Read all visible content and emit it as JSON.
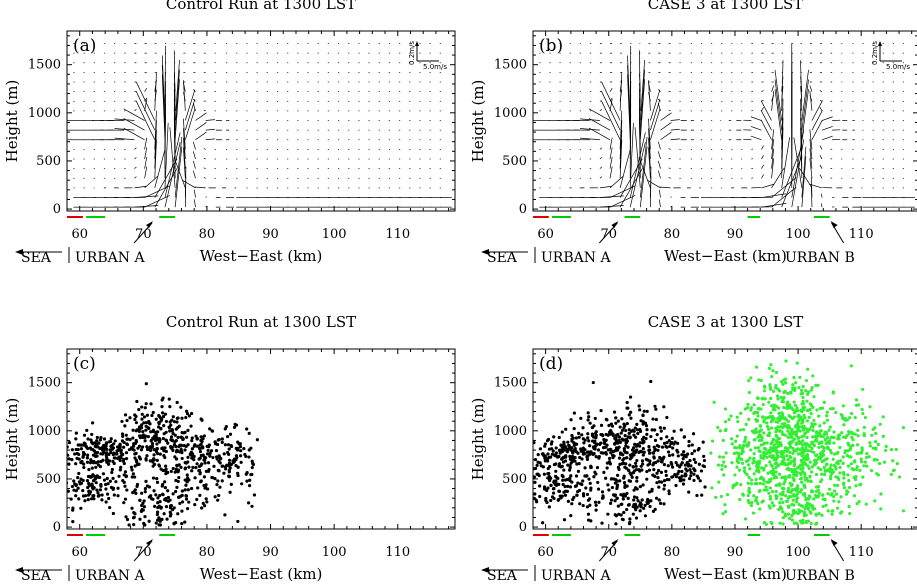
{
  "chart_data": [
    {
      "id": "a",
      "type": "vector",
      "title": "Control Run at 1300 LST",
      "panel_label": "(a)",
      "xlabel": "West−East (km)",
      "ylabel": "Height (m)",
      "xlim": [
        58,
        119
      ],
      "ylim": [
        -20,
        1850
      ],
      "xticks": [
        60,
        70,
        80,
        90,
        100,
        110
      ],
      "yticks": [
        0,
        500,
        1000,
        1500
      ],
      "legend_key": {
        "vertical": "0.2m/s",
        "horizontal": "5.0m/s",
        "placement": "top-right"
      },
      "updraft_km": [
        73,
        75
      ],
      "annotations": {
        "sea": "SEA",
        "urban_a": "URBAN A",
        "urban_b": ""
      },
      "surface_segments": [
        {
          "color": "#dd0000",
          "x": [
            58,
            60.5
          ]
        },
        {
          "color": "#00cc00",
          "x": [
            61,
            64
          ]
        },
        {
          "color": "#00cc00",
          "x": [
            72.5,
            75
          ]
        }
      ]
    },
    {
      "id": "b",
      "type": "vector",
      "title": "CASE 3 at 1300 LST",
      "panel_label": "(b)",
      "xlabel": "West−East (km)",
      "ylabel": "Height (m)",
      "xlim": [
        58,
        119
      ],
      "ylim": [
        -20,
        1850
      ],
      "xticks": [
        60,
        70,
        80,
        90,
        100,
        110
      ],
      "yticks": [
        0,
        500,
        1000,
        1500
      ],
      "legend_key": {
        "vertical": "0.2m/s",
        "horizontal": "5.0m/s",
        "placement": "top-right"
      },
      "updraft_km": [
        73,
        75,
        98,
        100
      ],
      "annotations": {
        "sea": "SEA",
        "urban_a": "URBAN A",
        "urban_b": "URBAN B"
      },
      "surface_segments": [
        {
          "color": "#dd0000",
          "x": [
            58,
            60.5
          ]
        },
        {
          "color": "#00cc00",
          "x": [
            61,
            64
          ]
        },
        {
          "color": "#00cc00",
          "x": [
            72.5,
            75
          ]
        },
        {
          "color": "#00cc00",
          "x": [
            92,
            94
          ]
        },
        {
          "color": "#00cc00",
          "x": [
            102.5,
            105
          ]
        }
      ]
    },
    {
      "id": "c",
      "type": "scatter",
      "title": "Control Run at 1300 LST",
      "panel_label": "(c)",
      "xlabel": "West−East (km)",
      "ylabel": "Height (m)",
      "xlim": [
        58,
        119
      ],
      "ylim": [
        -20,
        1850
      ],
      "xticks": [
        60,
        70,
        80,
        90,
        100,
        110
      ],
      "yticks": [
        0,
        500,
        1000,
        1500
      ],
      "annotations": {
        "sea": "SEA",
        "urban_a": "URBAN A",
        "urban_b": ""
      },
      "surface_segments": [
        {
          "color": "#dd0000",
          "x": [
            58,
            60.5
          ]
        },
        {
          "color": "#00cc00",
          "x": [
            61,
            64
          ]
        },
        {
          "color": "#00cc00",
          "x": [
            72.5,
            75
          ]
        }
      ],
      "series": [
        {
          "color": "#000000",
          "clouds": [
            {
              "cx": 63,
              "cy": 780,
              "sx": 3,
              "sy": 90,
              "n": 160
            },
            {
              "cx": 62,
              "cy": 430,
              "sx": 3,
              "sy": 110,
              "n": 120
            },
            {
              "cx": 72,
              "cy": 900,
              "sx": 3.5,
              "sy": 180,
              "n": 260
            },
            {
              "cx": 72,
              "cy": 250,
              "sx": 3,
              "sy": 150,
              "n": 110
            },
            {
              "cx": 80,
              "cy": 650,
              "sx": 3.5,
              "sy": 200,
              "n": 200
            },
            {
              "cx": 85,
              "cy": 700,
              "sx": 2,
              "sy": 120,
              "n": 40
            }
          ],
          "xmax": 88
        }
      ]
    },
    {
      "id": "d",
      "type": "scatter",
      "title": "CASE 3 at 1300 LST",
      "panel_label": "(d)",
      "xlabel": "West−East (km)",
      "ylabel": "Height (m)",
      "xlim": [
        58,
        119
      ],
      "ylim": [
        -20,
        1850
      ],
      "xticks": [
        60,
        70,
        80,
        90,
        100,
        110
      ],
      "yticks": [
        0,
        500,
        1000,
        1500
      ],
      "annotations": {
        "sea": "SEA",
        "urban_a": "URBAN A",
        "urban_b": "URBAN B"
      },
      "surface_segments": [
        {
          "color": "#dd0000",
          "x": [
            58,
            60.5
          ]
        },
        {
          "color": "#00cc00",
          "x": [
            61,
            64
          ]
        },
        {
          "color": "#00cc00",
          "x": [
            72.5,
            75
          ]
        },
        {
          "color": "#00cc00",
          "x": [
            92,
            94
          ]
        },
        {
          "color": "#00cc00",
          "x": [
            102.5,
            105
          ]
        }
      ],
      "series": [
        {
          "color": "#000000",
          "clouds": [
            {
              "cx": 63,
              "cy": 780,
              "sx": 3,
              "sy": 90,
              "n": 160
            },
            {
              "cx": 62,
              "cy": 430,
              "sx": 3,
              "sy": 110,
              "n": 120
            },
            {
              "cx": 72,
              "cy": 900,
              "sx": 3.5,
              "sy": 180,
              "n": 260
            },
            {
              "cx": 72,
              "cy": 250,
              "sx": 3,
              "sy": 150,
              "n": 110
            },
            {
              "cx": 80,
              "cy": 650,
              "sx": 3.5,
              "sy": 170,
              "n": 180
            }
          ],
          "xmax": 86
        },
        {
          "color": "#33ee33",
          "clouds": [
            {
              "cx": 100,
              "cy": 750,
              "sx": 7,
              "sy": 280,
              "n": 900
            },
            {
              "cx": 99,
              "cy": 1200,
              "sx": 3,
              "sy": 220,
              "n": 180
            },
            {
              "cx": 100,
              "cy": 250,
              "sx": 3,
              "sy": 160,
              "n": 120
            }
          ],
          "xmin": 86,
          "xmax": 117
        }
      ]
    }
  ]
}
